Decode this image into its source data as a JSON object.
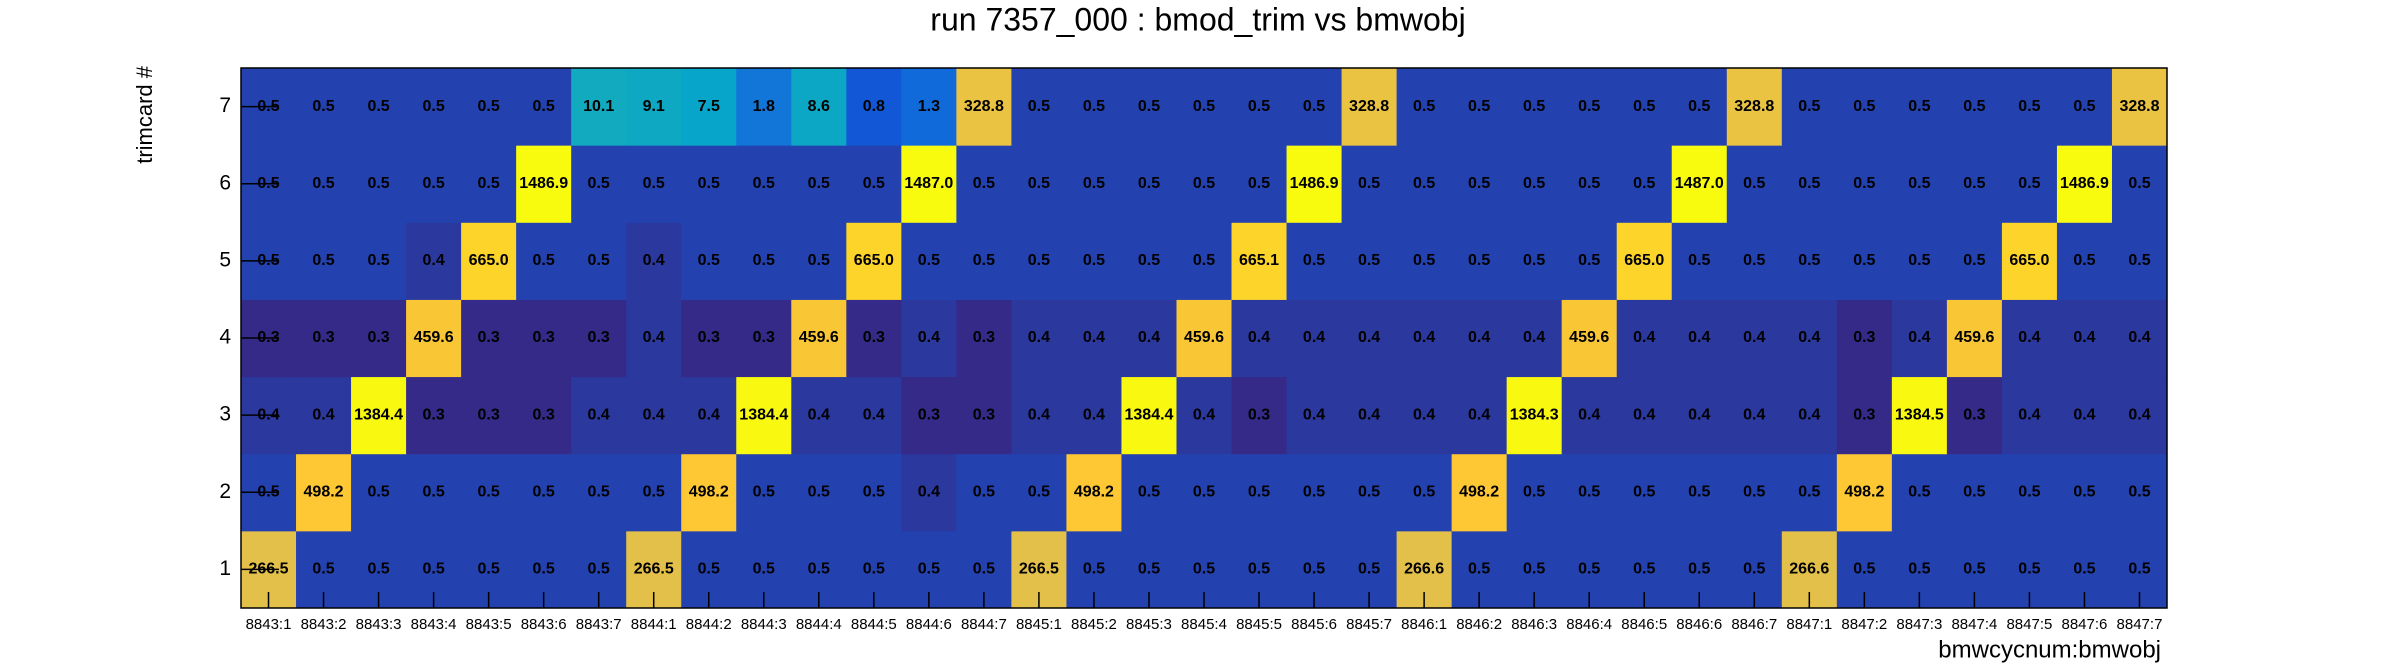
{
  "chart_data": {
    "type": "heatmap",
    "title": "run 7357_000 : bmod_trim vs bmwobj",
    "x_label": "bmwcycnum:bmwobj",
    "y_label": "trimcard #",
    "categories": [
      "8843:1",
      "8843:2",
      "8843:3",
      "8843:4",
      "8843:5",
      "8843:6",
      "8843:7",
      "8844:1",
      "8844:2",
      "8844:3",
      "8844:4",
      "8844:5",
      "8844:6",
      "8844:7",
      "8845:1",
      "8845:2",
      "8845:3",
      "8845:4",
      "8845:5",
      "8845:6",
      "8845:7",
      "8846:1",
      "8846:2",
      "8846:3",
      "8846:4",
      "8846:5",
      "8846:6",
      "8846:7",
      "8847:1",
      "8847:2",
      "8847:3",
      "8847:4",
      "8847:5",
      "8847:6",
      "8847:7"
    ],
    "ylim": [
      0.5,
      7.5
    ],
    "yticks": [
      1,
      2,
      3,
      4,
      5,
      6,
      7
    ],
    "z_log": true,
    "palette": [
      "#352a87",
      "#0f5cdd",
      "#1481d6",
      "#06a4ca",
      "#2eb7a4",
      "#87bf77",
      "#d1bb59",
      "#fec832",
      "#f9fb0e"
    ],
    "z": [
      [
        266.5,
        0.5,
        0.5,
        0.5,
        0.5,
        0.5,
        0.5,
        266.5,
        0.5,
        0.5,
        0.5,
        0.5,
        0.5,
        0.5,
        266.5,
        0.5,
        0.5,
        0.5,
        0.5,
        0.5,
        0.5,
        266.6,
        0.5,
        0.5,
        0.5,
        0.5,
        0.5,
        0.5,
        266.6,
        0.5,
        0.5,
        0.5,
        0.5,
        0.5,
        0.5
      ],
      [
        0.5,
        498.2,
        0.5,
        0.5,
        0.5,
        0.5,
        0.5,
        0.5,
        498.2,
        0.5,
        0.5,
        0.5,
        0.4,
        0.5,
        0.5,
        498.2,
        0.5,
        0.5,
        0.5,
        0.5,
        0.5,
        0.5,
        498.2,
        0.5,
        0.5,
        0.5,
        0.5,
        0.5,
        0.5,
        498.2,
        0.5,
        0.5,
        0.5,
        0.5,
        0.5
      ],
      [
        0.4,
        0.4,
        1384.4,
        0.3,
        0.3,
        0.3,
        0.4,
        0.4,
        0.4,
        1384.4,
        0.4,
        0.4,
        0.3,
        0.3,
        0.4,
        0.4,
        1384.4,
        0.4,
        0.3,
        0.4,
        0.4,
        0.4,
        0.4,
        1384.3,
        0.4,
        0.4,
        0.4,
        0.4,
        0.4,
        0.3,
        1384.5,
        0.3,
        0.4,
        0.4,
        0.4
      ],
      [
        0.3,
        0.3,
        0.3,
        459.6,
        0.3,
        0.3,
        0.3,
        0.4,
        0.3,
        0.3,
        459.6,
        0.3,
        0.4,
        0.3,
        0.4,
        0.4,
        0.4,
        459.6,
        0.4,
        0.4,
        0.4,
        0.4,
        0.4,
        0.4,
        459.6,
        0.4,
        0.4,
        0.4,
        0.4,
        0.3,
        0.4,
        459.6,
        0.4,
        0.4,
        0.4
      ],
      [
        0.5,
        0.5,
        0.5,
        0.4,
        665.0,
        0.5,
        0.5,
        0.4,
        0.5,
        0.5,
        0.5,
        665.0,
        0.5,
        0.5,
        0.5,
        0.5,
        0.5,
        0.5,
        665.1,
        0.5,
        0.5,
        0.5,
        0.5,
        0.5,
        0.5,
        665.0,
        0.5,
        0.5,
        0.5,
        0.5,
        0.5,
        0.5,
        665.0,
        0.5,
        0.5
      ],
      [
        0.5,
        0.5,
        0.5,
        0.5,
        0.5,
        1486.9,
        0.5,
        0.5,
        0.5,
        0.5,
        0.5,
        0.5,
        1487.0,
        0.5,
        0.5,
        0.5,
        0.5,
        0.5,
        0.5,
        1486.9,
        0.5,
        0.5,
        0.5,
        0.5,
        0.5,
        0.5,
        1487.0,
        0.5,
        0.5,
        0.5,
        0.5,
        0.5,
        0.5,
        1486.9,
        0.5
      ],
      [
        0.5,
        0.5,
        0.5,
        0.5,
        0.5,
        0.5,
        10.1,
        9.1,
        7.5,
        1.8,
        8.6,
        0.8,
        1.3,
        328.8,
        0.5,
        0.5,
        0.5,
        0.5,
        0.5,
        0.5,
        328.8,
        0.5,
        0.5,
        0.5,
        0.5,
        0.5,
        0.5,
        328.8,
        0.5,
        0.5,
        0.5,
        0.5,
        0.5,
        0.5,
        328.8
      ]
    ],
    "value_labels": [
      [
        "266.5",
        "0.5",
        "0.5",
        "0.5",
        "0.5",
        "0.5",
        "0.5",
        "266.5",
        "0.5",
        "0.5",
        "0.5",
        "0.5",
        "0.5",
        "0.5",
        "266.5",
        "0.5",
        "0.5",
        "0.5",
        "0.5",
        "0.5",
        "0.5",
        "266.6",
        "0.5",
        "0.5",
        "0.5",
        "0.5",
        "0.5",
        "0.5",
        "266.6",
        "0.5",
        "0.5",
        "0.5",
        "0.5",
        "0.5",
        "0.5"
      ],
      [
        "0.5",
        "498.2",
        "0.5",
        "0.5",
        "0.5",
        "0.5",
        "0.5",
        "0.5",
        "498.2",
        "0.5",
        "0.5",
        "0.5",
        "0.4",
        "0.5",
        "0.5",
        "498.2",
        "0.5",
        "0.5",
        "0.5",
        "0.5",
        "0.5",
        "0.5",
        "498.2",
        "0.5",
        "0.5",
        "0.5",
        "0.5",
        "0.5",
        "0.5",
        "498.2",
        "0.5",
        "0.5",
        "0.5",
        "0.5",
        "0.5"
      ],
      [
        "0.4",
        "0.4",
        "1384.4",
        "0.3",
        "0.3",
        "0.3",
        "0.4",
        "0.4",
        "0.4",
        "1384.4",
        "0.4",
        "0.4",
        "0.3",
        "0.3",
        "0.4",
        "0.4",
        "1384.4",
        "0.4",
        "0.3",
        "0.4",
        "0.4",
        "0.4",
        "0.4",
        "1384.3",
        "0.4",
        "0.4",
        "0.4",
        "0.4",
        "0.4",
        "0.3",
        "1384.5",
        "0.3",
        "0.4",
        "0.4",
        "0.4"
      ],
      [
        "0.3",
        "0.3",
        "0.3",
        "459.6",
        "0.3",
        "0.3",
        "0.3",
        "0.4",
        "0.3",
        "0.3",
        "459.6",
        "0.3",
        "0.4",
        "0.3",
        "0.4",
        "0.4",
        "0.4",
        "459.6",
        "0.4",
        "0.4",
        "0.4",
        "0.4",
        "0.4",
        "0.4",
        "459.6",
        "0.4",
        "0.4",
        "0.4",
        "0.4",
        "0.3",
        "0.4",
        "459.6",
        "0.4",
        "0.4",
        "0.4"
      ],
      [
        "0.5",
        "0.5",
        "0.5",
        "0.4",
        "665.0",
        "0.5",
        "0.5",
        "0.4",
        "0.5",
        "0.5",
        "0.5",
        "665.0",
        "0.5",
        "0.5",
        "0.5",
        "0.5",
        "0.5",
        "0.5",
        "665.1",
        "0.5",
        "0.5",
        "0.5",
        "0.5",
        "0.5",
        "0.5",
        "665.0",
        "0.5",
        "0.5",
        "0.5",
        "0.5",
        "0.5",
        "0.5",
        "665.0",
        "0.5",
        "0.5"
      ],
      [
        "0.5",
        "0.5",
        "0.5",
        "0.5",
        "0.5",
        "1486.9",
        "0.5",
        "0.5",
        "0.5",
        "0.5",
        "0.5",
        "0.5",
        "1487.0",
        "0.5",
        "0.5",
        "0.5",
        "0.5",
        "0.5",
        "0.5",
        "1486.9",
        "0.5",
        "0.5",
        "0.5",
        "0.5",
        "0.5",
        "0.5",
        "1487.0",
        "0.5",
        "0.5",
        "0.5",
        "0.5",
        "0.5",
        "0.5",
        "1486.9",
        "0.5"
      ],
      [
        "0.5",
        "0.5",
        "0.5",
        "0.5",
        "0.5",
        "0.5",
        "10.1",
        "9.1",
        "7.5",
        "1.8",
        "8.6",
        "0.8",
        "1.3",
        "328.8",
        "0.5",
        "0.5",
        "0.5",
        "0.5",
        "0.5",
        "0.5",
        "328.8",
        "0.5",
        "0.5",
        "0.5",
        "0.5",
        "0.5",
        "0.5",
        "328.8",
        "0.5",
        "0.5",
        "0.5",
        "0.5",
        "0.5",
        "0.5",
        "328.8"
      ]
    ]
  }
}
